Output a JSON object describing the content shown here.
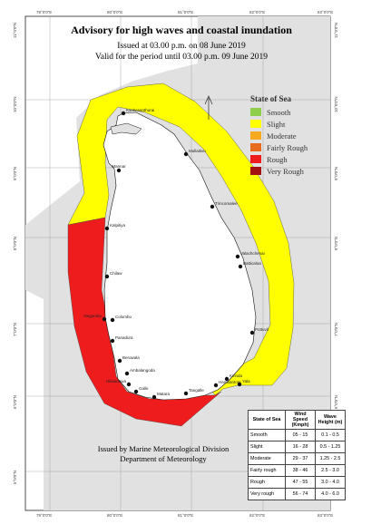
{
  "title": "Advisory for high waves and coastal inundation",
  "issued": "Issued at 03.00 p.m. on 08 June 2019",
  "valid": "Valid for the period until 03.00 p.m. 09 June 2019",
  "legend": {
    "title": "State of Sea",
    "items": [
      {
        "label": "Smooth",
        "color": "#8fce4a"
      },
      {
        "label": "Slight",
        "color": "#ffff00"
      },
      {
        "label": "Moderate",
        "color": "#f6a91f"
      },
      {
        "label": "Fairly Rough",
        "color": "#e86a1f"
      },
      {
        "label": "Rough",
        "color": "#ee1c1c"
      },
      {
        "label": "Very Rough",
        "color": "#a31111"
      }
    ]
  },
  "colors": {
    "sea_slight": "#ffff00",
    "sea_rough": "#ee1c1c",
    "land": "#ffffff",
    "ocean": "#e1e1e1",
    "outside": "#ffffff"
  },
  "table": {
    "headers": [
      "State of Sea",
      "Wind Speed (Kmph)",
      "Wave Height (m)"
    ],
    "rows": [
      [
        "Smooth",
        "05 - 15",
        "0.1 - 0.5"
      ],
      [
        "Slight",
        "16 - 28",
        "0.5 - 1.25"
      ],
      [
        "Moderate",
        "29 - 37",
        "1.25 - 2.5"
      ],
      [
        "Fairly rough",
        "38 - 46",
        "2.5 - 3.0"
      ],
      [
        "Rough",
        "47 - 55",
        "3.0 - 4.0"
      ],
      [
        "Very rough",
        "56 - 74",
        "4.0 - 6.0"
      ]
    ]
  },
  "footer": [
    "Issued by Marine Meteorological Division",
    "Department of Meteorology"
  ],
  "coords": {
    "longitudes": [
      "79°0'0\"E",
      "80°0'0\"E",
      "81°0'0\"E",
      "82°0'0\"E",
      "83°0'0\"E"
    ],
    "latitudes": [
      "11°0'0\"N",
      "10°0'0\"N",
      "9°0'0\"N",
      "8°0'0\"N",
      "7°0'0\"N",
      "6°0'0\"N",
      "5°0'0\"N"
    ]
  },
  "towns": [
    "Kankesanthurai",
    "Mullaitivu",
    "Mannar",
    "Trincomalee",
    "Kalpitiya",
    "Valachchenai",
    "Batticaloa",
    "Chilaw",
    "Negombo",
    "Colombo",
    "Panadura",
    "Pottuvil",
    "Beruwala",
    "Ambalangoda",
    "Hikkaduwa",
    "Galle",
    "Matara",
    "Tangalle",
    "Hambantota",
    "Kirinda",
    "Yala"
  ]
}
